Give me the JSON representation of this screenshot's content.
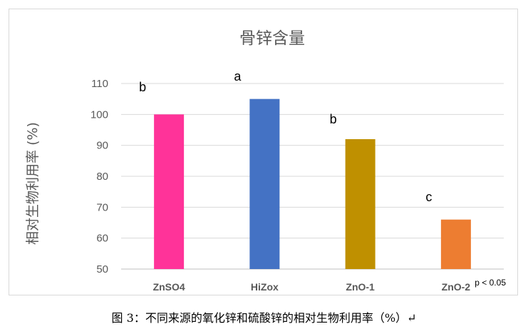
{
  "chart_data": {
    "type": "bar",
    "title": "骨锌含量",
    "ylabel": "相对生物利用率 (%)",
    "xlabel": "",
    "categories": [
      "ZnSO4",
      "HiZox",
      "ZnO-1",
      "ZnO-2"
    ],
    "values": [
      100,
      105,
      92,
      66
    ],
    "colors": [
      "#FF3399",
      "#4472C4",
      "#BF9000",
      "#ED7D31"
    ],
    "significance_letters": [
      "b",
      "a",
      "b",
      "c"
    ],
    "ylim": [
      50,
      110
    ],
    "yticks": [
      50,
      60,
      70,
      80,
      90,
      100,
      110
    ],
    "grid": true,
    "annotation": "p < 0.05"
  },
  "caption": "图 3：不同来源的氧化锌和硫酸锌的相对生物利用率（%）↵"
}
